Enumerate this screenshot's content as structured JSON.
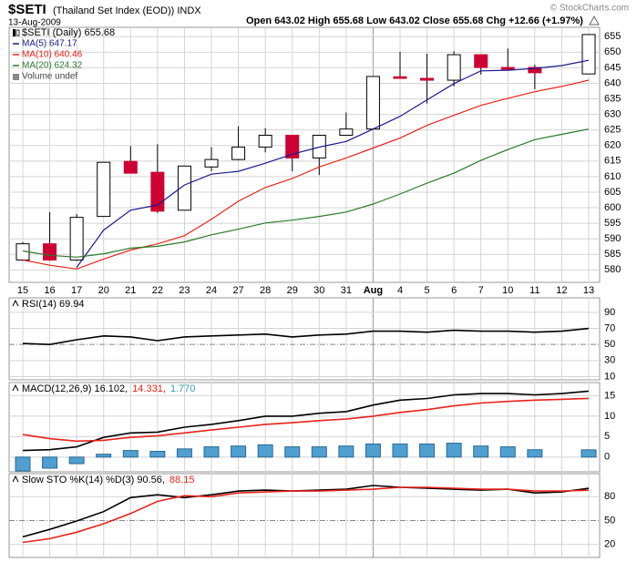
{
  "header": {
    "symbol": "$SETI",
    "name": "(Thailand Set Index (EOD)) INDX",
    "date": "13-Aug-2009",
    "quote": "Open 643.02  High 655.68  Low 643.02  Close 655.68  Chg +12.66 (+1.97%)",
    "credit": "© StockCharts.com"
  },
  "chart_data": [
    {
      "type": "candlestick",
      "legend": "$SETI (Daily) 655.68",
      "volume_legend": "Volume undef",
      "categories": [
        "15",
        "16",
        "17",
        "20",
        "21",
        "22",
        "23",
        "24",
        "27",
        "28",
        "29",
        "30",
        "31",
        "Aug",
        "4",
        "5",
        "6",
        "7",
        "10",
        "11",
        "12",
        "13"
      ],
      "open": [
        583.2,
        588.4,
        583.2,
        597.2,
        614.9,
        611.4,
        599.2,
        613.1,
        615.5,
        619.5,
        623.3,
        616.0,
        623.3,
        625.3,
        642.1,
        641.6,
        641.0,
        649.2,
        645.1,
        645.1,
        null,
        643.02
      ],
      "high": [
        589.0,
        598.6,
        598.0,
        614.6,
        619.8,
        620.4,
        613.4,
        619.5,
        626.2,
        625.6,
        623.3,
        623.3,
        630.6,
        642.2,
        650.1,
        649.5,
        650.3,
        649.2,
        651.2,
        646.0,
        null,
        655.68
      ],
      "low": [
        582.9,
        582.9,
        582.9,
        597.2,
        611.1,
        598.3,
        599.2,
        611.7,
        615.2,
        617.8,
        611.7,
        610.5,
        623.3,
        625.1,
        641.6,
        633.5,
        639.0,
        642.8,
        644.5,
        638.1,
        null,
        643.02
      ],
      "close": [
        588.4,
        583.2,
        596.9,
        614.6,
        611.1,
        598.9,
        613.4,
        615.5,
        619.5,
        623.3,
        616.0,
        623.3,
        625.3,
        642.2,
        641.6,
        641.0,
        649.2,
        645.1,
        644.5,
        643.4,
        null,
        655.68
      ],
      "up_color": "#ffffff",
      "down_color": "#cc0033",
      "series": [
        {
          "name": "MA(5) 647.17",
          "color": "#1a1a8c",
          "values": [
            null,
            null,
            580.8,
            592.8,
            599.2,
            600.9,
            607.3,
            610.8,
            611.7,
            614.3,
            617.2,
            619.5,
            621.3,
            625.3,
            629.4,
            634.7,
            639.9,
            644.0,
            644.2,
            644.8,
            645.7,
            647.4
          ]
        },
        {
          "name": "MA(10) 640.46",
          "color": "#e8231a",
          "values": [
            583.2,
            581.5,
            580.3,
            583.5,
            586.4,
            588.4,
            591.0,
            596.3,
            602.1,
            606.5,
            609.4,
            613.1,
            616.0,
            619.2,
            622.4,
            626.5,
            629.7,
            632.9,
            635.2,
            637.3,
            639.0,
            641.0
          ]
        },
        {
          "name": "MA(20) 624.32",
          "color": "#2a7a2a",
          "values": [
            586.1,
            584.7,
            584.1,
            585.2,
            587.0,
            587.6,
            589.0,
            591.3,
            593.1,
            595.1,
            596.0,
            597.2,
            598.6,
            601.2,
            604.4,
            607.9,
            611.1,
            615.2,
            618.7,
            621.9,
            623.6,
            625.3
          ]
        }
      ],
      "ylim": [
        576,
        658
      ],
      "yticks": [
        580,
        585,
        590,
        595,
        600,
        605,
        610,
        615,
        620,
        625,
        630,
        635,
        640,
        645,
        650,
        655
      ],
      "grid": true
    },
    {
      "type": "line",
      "title": [
        {
          "text": "RSI(14) 69.94",
          "color": "#000000"
        }
      ],
      "series": [
        {
          "name": "RSI(14)",
          "color": "#000000",
          "values": [
            51.2,
            50,
            55.9,
            60.6,
            59.4,
            54.7,
            59.4,
            60.6,
            61.8,
            62.9,
            59.4,
            61.8,
            62.9,
            66.5,
            66.5,
            65.3,
            67.6,
            66.5,
            66.5,
            65.3,
            66.5,
            69.94
          ]
        }
      ],
      "ylim": [
        6,
        108
      ],
      "yticks": [
        10,
        30,
        50,
        70,
        90
      ],
      "refline": 50,
      "grid": true
    },
    {
      "type": "macd",
      "title": [
        {
          "text": "MACD(12,26,9) 16.102,",
          "color": "#000000"
        },
        {
          "text": "14.331,",
          "color": "#e8231a"
        },
        {
          "text": "1.770",
          "color": "#3a9ab0"
        }
      ],
      "series": [
        {
          "name": "MACD",
          "color": "#000000",
          "values": [
            1.6,
            1.8,
            2.5,
            4.8,
            5.9,
            6.1,
            7.3,
            8.0,
            8.9,
            10.0,
            10.0,
            10.7,
            11.1,
            12.7,
            13.9,
            14.3,
            15.2,
            15.5,
            15.5,
            15.2,
            15.5,
            16.102
          ]
        },
        {
          "name": "Signal",
          "color": "#e8231a",
          "values": [
            5.5,
            4.5,
            3.9,
            4.1,
            4.8,
            5.2,
            5.9,
            6.6,
            7.3,
            8.0,
            8.4,
            8.9,
            9.3,
            10.0,
            10.9,
            11.6,
            12.5,
            13.2,
            13.6,
            13.9,
            14.1,
            14.331
          ]
        }
      ],
      "histogram": {
        "color": "#4f9fd0",
        "values": [
          -3.4,
          -2.7,
          -1.6,
          0.7,
          1.6,
          1.4,
          2.0,
          2.5,
          2.7,
          3.0,
          2.5,
          2.5,
          2.7,
          3.2,
          3.2,
          3.2,
          3.4,
          2.7,
          2.5,
          1.8,
          null,
          1.77
        ]
      },
      "ylim": [
        -3.6,
        18.2
      ],
      "yticks": [
        0,
        5,
        10,
        15
      ],
      "grid": true
    },
    {
      "type": "line",
      "title": [
        {
          "text": "Slow STO %K(14) %D(3) 90.56,",
          "color": "#000000"
        },
        {
          "text": "88.15",
          "color": "#e8231a"
        }
      ],
      "series": [
        {
          "name": "%K(14)",
          "color": "#000000",
          "values": [
            29.4,
            38.8,
            49.4,
            61.2,
            78.8,
            82.4,
            78.8,
            82.4,
            87.1,
            88.2,
            87.1,
            88.2,
            89.4,
            94.1,
            91.8,
            90.6,
            89.4,
            88.2,
            89.4,
            84.7,
            85.9,
            90.56
          ]
        },
        {
          "name": "%D(3)",
          "color": "#e8231a",
          "values": [
            22.4,
            27.1,
            35.3,
            45.9,
            58.8,
            74.1,
            81.2,
            80.0,
            84.7,
            85.9,
            87.1,
            87.1,
            88.2,
            89.4,
            91.8,
            91.8,
            90.6,
            89.4,
            89.4,
            87.1,
            87.1,
            88.15
          ]
        }
      ],
      "ylim": [
        3.5,
        109
      ],
      "yticks": [
        20,
        50,
        80
      ],
      "refline": 50,
      "grid": true
    }
  ]
}
